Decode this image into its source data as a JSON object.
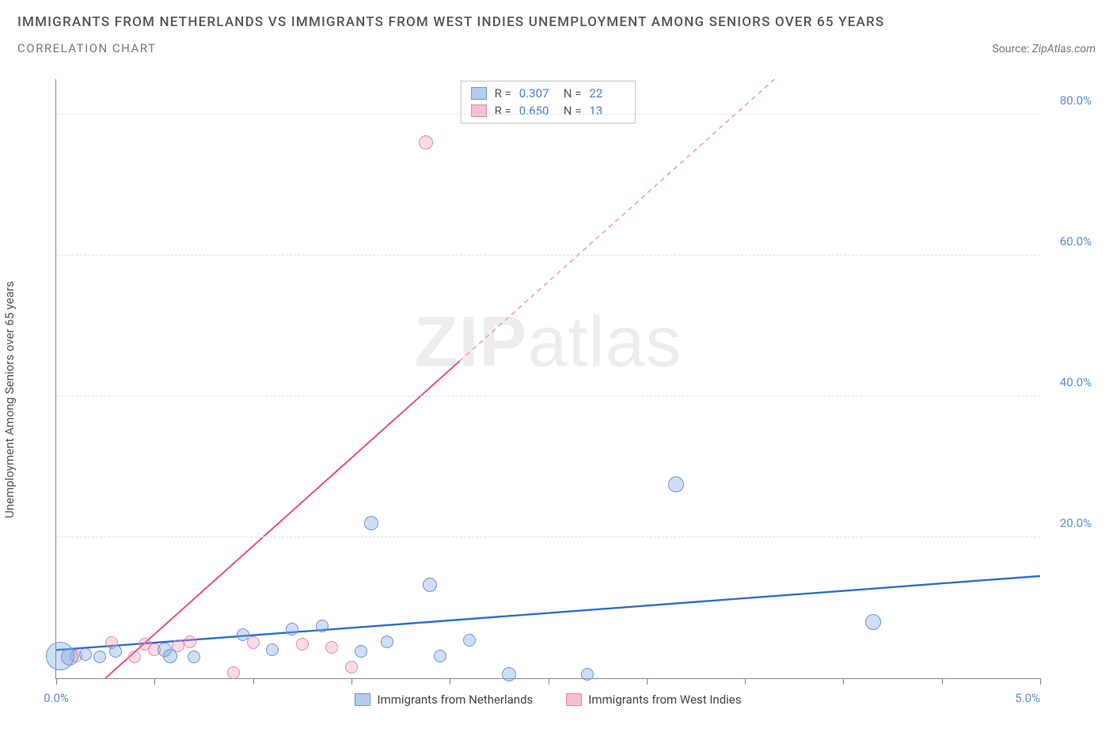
{
  "header": {
    "title": "IMMIGRANTS FROM NETHERLANDS VS IMMIGRANTS FROM WEST INDIES UNEMPLOYMENT AMONG SENIORS OVER 65 YEARS",
    "subtitle": "CORRELATION CHART",
    "source_prefix": "Source: ",
    "source_name": "ZipAtlas.com"
  },
  "chart": {
    "type": "scatter",
    "y_axis_label": "Unemployment Among Seniors over 65 years",
    "xlim": [
      0,
      5.0
    ],
    "ylim": [
      0,
      85
    ],
    "x_ticks": [
      0.0,
      0.5,
      1.0,
      1.5,
      2.0,
      2.5,
      3.0,
      3.5,
      4.0,
      4.5,
      5.0
    ],
    "x_tick_labels": {
      "0": "0.0%",
      "5": "5.0%"
    },
    "y_grid": [
      20,
      40,
      60,
      80
    ],
    "y_tick_labels": {
      "20": "20.0%",
      "40": "40.0%",
      "60": "60.0%",
      "80": "80.0%"
    },
    "watermark": {
      "bold": "ZIP",
      "rest": "atlas"
    },
    "colors": {
      "blue_fill": "rgba(120,160,220,0.35)",
      "blue_stroke": "#6a97d6",
      "blue_line": "#2e6fd0",
      "pink_fill": "rgba(235,140,170,0.30)",
      "pink_stroke": "#e48aac",
      "pink_line": "#e6527f",
      "pink_dash": "#f0a8bd",
      "tick_label": "#5b8dd6",
      "grid": "#e4e4e4"
    },
    "legend_top": [
      {
        "color": "blue",
        "r_label": "R =",
        "r": "0.307",
        "n_label": "N =",
        "n": "22"
      },
      {
        "color": "pink",
        "r_label": "R =",
        "r": "0.650",
        "n_label": "N =",
        "n": "13"
      }
    ],
    "legend_bottom": [
      {
        "color": "blue",
        "label": "Immigrants from Netherlands"
      },
      {
        "color": "pink",
        "label": "Immigrants from West Indies"
      }
    ],
    "trend_lines": {
      "blue": {
        "x1": 0.0,
        "y1": 4.0,
        "x2": 5.0,
        "y2": 14.5,
        "dash": false
      },
      "pink_solid": {
        "x1": 0.25,
        "y1": 0.0,
        "x2": 2.05,
        "y2": 45.0
      },
      "pink_dash": {
        "x1": 2.05,
        "y1": 45.0,
        "x2": 3.65,
        "y2": 85.0
      }
    },
    "series": {
      "blue": [
        {
          "x": 0.02,
          "y": 3.2,
          "r": 18
        },
        {
          "x": 0.07,
          "y": 3.0,
          "r": 11
        },
        {
          "x": 0.15,
          "y": 3.4,
          "r": 8
        },
        {
          "x": 0.22,
          "y": 3.0,
          "r": 8
        },
        {
          "x": 0.3,
          "y": 3.8,
          "r": 8
        },
        {
          "x": 0.55,
          "y": 4.0,
          "r": 9
        },
        {
          "x": 0.58,
          "y": 3.2,
          "r": 9
        },
        {
          "x": 0.7,
          "y": 3.0,
          "r": 8
        },
        {
          "x": 0.95,
          "y": 6.2,
          "r": 8
        },
        {
          "x": 1.1,
          "y": 4.0,
          "r": 8
        },
        {
          "x": 1.2,
          "y": 7.0,
          "r": 8
        },
        {
          "x": 1.35,
          "y": 7.4,
          "r": 8
        },
        {
          "x": 1.55,
          "y": 3.8,
          "r": 8
        },
        {
          "x": 1.6,
          "y": 22.0,
          "r": 9
        },
        {
          "x": 1.68,
          "y": 5.2,
          "r": 8
        },
        {
          "x": 1.9,
          "y": 13.2,
          "r": 9
        },
        {
          "x": 1.95,
          "y": 3.2,
          "r": 8
        },
        {
          "x": 2.1,
          "y": 5.4,
          "r": 8
        },
        {
          "x": 2.3,
          "y": 0.6,
          "r": 9
        },
        {
          "x": 2.7,
          "y": 0.6,
          "r": 8
        },
        {
          "x": 3.15,
          "y": 27.5,
          "r": 10
        },
        {
          "x": 4.15,
          "y": 8.0,
          "r": 10
        }
      ],
      "pink": [
        {
          "x": 0.1,
          "y": 3.2,
          "r": 8
        },
        {
          "x": 0.28,
          "y": 5.0,
          "r": 8
        },
        {
          "x": 0.4,
          "y": 3.0,
          "r": 8
        },
        {
          "x": 0.45,
          "y": 4.8,
          "r": 8
        },
        {
          "x": 0.5,
          "y": 4.0,
          "r": 8
        },
        {
          "x": 0.62,
          "y": 4.6,
          "r": 8
        },
        {
          "x": 0.68,
          "y": 5.2,
          "r": 8
        },
        {
          "x": 0.9,
          "y": 0.8,
          "r": 8
        },
        {
          "x": 1.0,
          "y": 5.0,
          "r": 8
        },
        {
          "x": 1.25,
          "y": 4.8,
          "r": 8
        },
        {
          "x": 1.4,
          "y": 4.4,
          "r": 8
        },
        {
          "x": 1.5,
          "y": 1.6,
          "r": 8
        },
        {
          "x": 1.88,
          "y": 76.0,
          "r": 9
        }
      ]
    }
  }
}
